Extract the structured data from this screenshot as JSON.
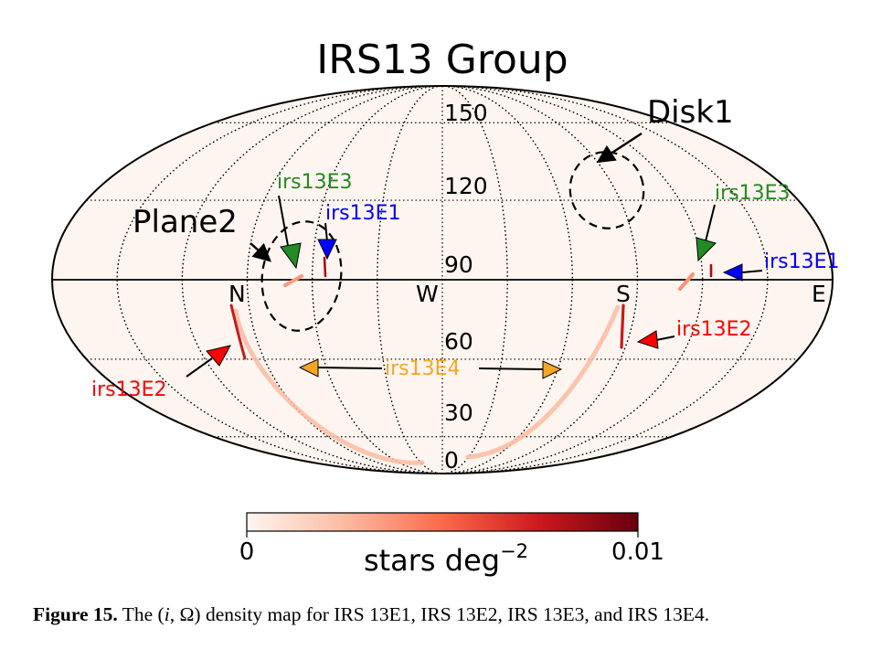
{
  "chart_data": {
    "type": "heatmap",
    "projection": "mollweide",
    "title": "IRS13 Group",
    "grid": true,
    "direction_labels": [
      "N",
      "W",
      "S",
      "E"
    ],
    "inclination_tick_labels": [
      "150",
      "120",
      "90",
      "60",
      "30",
      "0"
    ],
    "colorbar": {
      "min_label": "0",
      "max_label": "0.01",
      "label_main": "stars deg",
      "label_exp": "−2",
      "colors": [
        "#fff5f0",
        "#fcbba1",
        "#fb6a4a",
        "#cb181d",
        "#67000d"
      ]
    },
    "background_color": "#fff5f0",
    "series": [
      {
        "name": "irs13E1",
        "color": "#0000ff"
      },
      {
        "name": "irs13E2",
        "color": "#ff0000"
      },
      {
        "name": "irs13E3",
        "color": "#228b22"
      },
      {
        "name": "irs13E4",
        "color": "#f5a623"
      }
    ],
    "annotations": {
      "plane2": "Plane2",
      "disk1": "Disk1",
      "irs13E1": "irs13E1",
      "irs13E2": "irs13E2",
      "irs13E3": "irs13E3",
      "irs13E4": "irs13E4"
    }
  },
  "caption": {
    "label": "Figure 15.",
    "text_1": " The (",
    "i_symbol": "i",
    "text_2": ", Ω) density map for IRS 13E1, IRS 13E2, IRS 13E3, and IRS 13E4."
  }
}
